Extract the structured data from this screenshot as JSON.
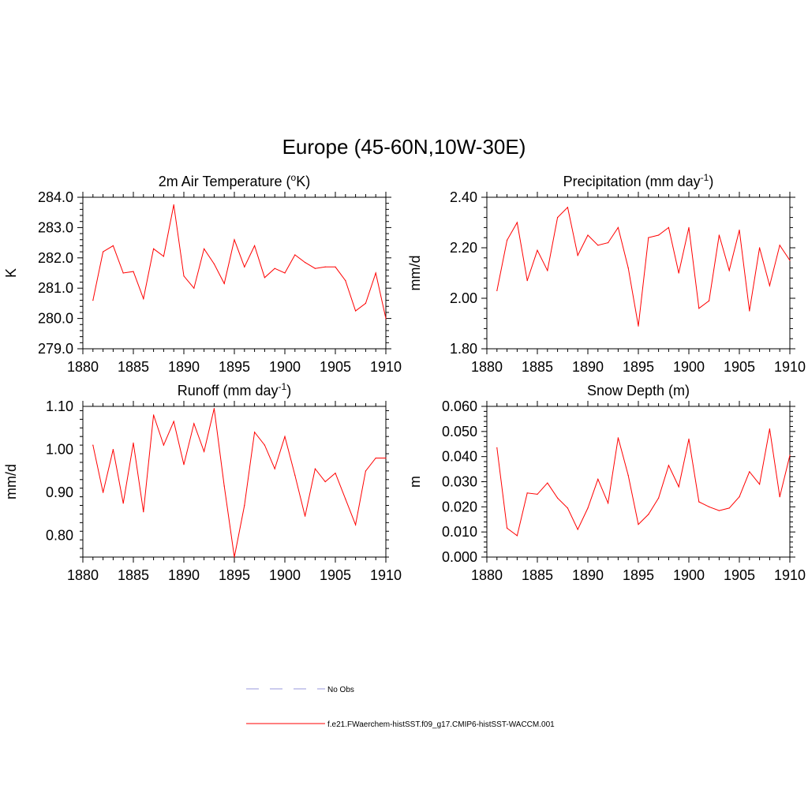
{
  "figure": {
    "title": "Europe (45-60N,10W-30E)"
  },
  "legend": {
    "entries": [
      {
        "label": "No Obs",
        "color": "#9999dd",
        "style": "dashed"
      },
      {
        "label": "f.e21.FWaerchem-histSST.f09_g17.CMIP6-histSST-WACCM.001",
        "color": "#ff0000",
        "style": "solid"
      }
    ]
  },
  "chart_data": [
    {
      "type": "line",
      "title": "2m Air Temperature (",
      "title_sup": "o",
      "title_suffix": "K)",
      "ylabel": "K",
      "xlim": [
        1880,
        1910
      ],
      "ylim": [
        279.0,
        284.0
      ],
      "xticks": [
        1880,
        1885,
        1890,
        1895,
        1900,
        1905,
        1910
      ],
      "xtick_labels": [
        "1880",
        "1885",
        "1890",
        "1895",
        "1900",
        "1905",
        "1910"
      ],
      "yticks": [
        279.0,
        280.0,
        281.0,
        282.0,
        283.0,
        284.0
      ],
      "ytick_labels": [
        "279.0",
        "280.0",
        "281.0",
        "282.0",
        "283.0",
        "284.0"
      ],
      "series": [
        {
          "color": "#ff0000",
          "x": [
            1881,
            1882,
            1883,
            1884,
            1885,
            1886,
            1887,
            1888,
            1889,
            1890,
            1891,
            1892,
            1893,
            1894,
            1895,
            1896,
            1897,
            1898,
            1899,
            1900,
            1901,
            1902,
            1903,
            1904,
            1905,
            1906,
            1907,
            1908,
            1909,
            1910
          ],
          "values": [
            280.6,
            282.2,
            282.4,
            281.5,
            281.55,
            280.65,
            282.3,
            282.05,
            283.75,
            281.4,
            281.0,
            282.3,
            281.8,
            281.15,
            282.6,
            281.7,
            282.4,
            281.35,
            281.65,
            281.5,
            282.1,
            281.85,
            281.65,
            281.7,
            281.7,
            281.25,
            280.25,
            280.5,
            281.5,
            280.0
          ]
        }
      ]
    },
    {
      "type": "line",
      "title": "Precipitation (mm day",
      "title_sup": "-1",
      "title_suffix": ")",
      "ylabel": "mm/d",
      "xlim": [
        1880,
        1910
      ],
      "ylim": [
        1.8,
        2.4
      ],
      "xticks": [
        1880,
        1885,
        1890,
        1895,
        1900,
        1905,
        1910
      ],
      "xtick_labels": [
        "1880",
        "1885",
        "1890",
        "1895",
        "1900",
        "1905",
        "1910"
      ],
      "yticks": [
        1.8,
        2.0,
        2.2,
        2.4
      ],
      "ytick_labels": [
        "1.80",
        "2.00",
        "2.20",
        "2.40"
      ],
      "series": [
        {
          "color": "#ff0000",
          "x": [
            1881,
            1882,
            1883,
            1884,
            1885,
            1886,
            1887,
            1888,
            1889,
            1890,
            1891,
            1892,
            1893,
            1894,
            1895,
            1896,
            1897,
            1898,
            1899,
            1900,
            1901,
            1902,
            1903,
            1904,
            1905,
            1906,
            1907,
            1908,
            1909,
            1910
          ],
          "values": [
            2.03,
            2.23,
            2.3,
            2.07,
            2.19,
            2.11,
            2.32,
            2.36,
            2.17,
            2.25,
            2.21,
            2.22,
            2.28,
            2.12,
            1.89,
            2.24,
            2.25,
            2.28,
            2.1,
            2.28,
            1.96,
            1.99,
            2.25,
            2.11,
            2.27,
            1.95,
            2.2,
            2.05,
            2.21,
            2.15
          ]
        }
      ]
    },
    {
      "type": "line",
      "title": "Runoff (mm day",
      "title_sup": "-1",
      "title_suffix": ")",
      "ylabel": "mm/d",
      "xlim": [
        1880,
        1910
      ],
      "ylim": [
        0.75,
        1.1
      ],
      "xticks": [
        1880,
        1885,
        1890,
        1895,
        1900,
        1905,
        1910
      ],
      "xtick_labels": [
        "1880",
        "1885",
        "1890",
        "1895",
        "1900",
        "1905",
        "1910"
      ],
      "yticks": [
        0.8,
        0.9,
        1.0,
        1.1
      ],
      "ytick_labels": [
        "0.80",
        "0.90",
        "1.00",
        "1.10"
      ],
      "series": [
        {
          "color": "#ff0000",
          "x": [
            1881,
            1882,
            1883,
            1884,
            1885,
            1886,
            1887,
            1888,
            1889,
            1890,
            1891,
            1892,
            1893,
            1894,
            1895,
            1896,
            1897,
            1898,
            1899,
            1900,
            1901,
            1902,
            1903,
            1904,
            1905,
            1906,
            1907,
            1908,
            1909,
            1910
          ],
          "values": [
            1.01,
            0.9,
            1.0,
            0.875,
            1.015,
            0.855,
            1.08,
            1.01,
            1.065,
            0.965,
            1.06,
            0.995,
            1.095,
            0.915,
            0.75,
            0.87,
            1.04,
            1.01,
            0.955,
            1.03,
            0.94,
            0.845,
            0.955,
            0.925,
            0.945,
            0.885,
            0.825,
            0.95,
            0.98,
            0.98
          ]
        }
      ]
    },
    {
      "type": "line",
      "title": "Snow Depth (m)",
      "title_sup": "",
      "title_suffix": "",
      "ylabel": "m",
      "xlim": [
        1880,
        1910
      ],
      "ylim": [
        0.0,
        0.06
      ],
      "xticks": [
        1880,
        1885,
        1890,
        1895,
        1900,
        1905,
        1910
      ],
      "xtick_labels": [
        "1880",
        "1885",
        "1890",
        "1895",
        "1900",
        "1905",
        "1910"
      ],
      "yticks": [
        0.0,
        0.01,
        0.02,
        0.03,
        0.04,
        0.05,
        0.06
      ],
      "ytick_labels": [
        "0.000",
        "0.010",
        "0.020",
        "0.030",
        "0.040",
        "0.050",
        "0.060"
      ],
      "series": [
        {
          "color": "#ff0000",
          "x": [
            1881,
            1882,
            1883,
            1884,
            1885,
            1886,
            1887,
            1888,
            1889,
            1890,
            1891,
            1892,
            1893,
            1894,
            1895,
            1896,
            1897,
            1898,
            1899,
            1900,
            1901,
            1902,
            1903,
            1904,
            1905,
            1906,
            1907,
            1908,
            1909,
            1910
          ],
          "values": [
            0.0435,
            0.0115,
            0.0085,
            0.0255,
            0.025,
            0.0295,
            0.0235,
            0.0195,
            0.011,
            0.0195,
            0.031,
            0.0215,
            0.0475,
            0.0325,
            0.013,
            0.017,
            0.0235,
            0.0365,
            0.028,
            0.047,
            0.022,
            0.02,
            0.0185,
            0.0195,
            0.024,
            0.034,
            0.029,
            0.051,
            0.024,
            0.0405
          ]
        }
      ]
    }
  ]
}
